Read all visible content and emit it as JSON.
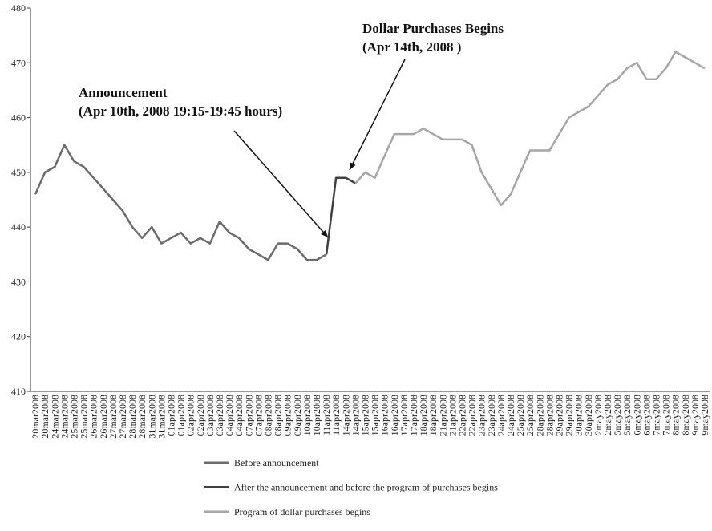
{
  "chart_data": {
    "type": "line",
    "categories": [
      "20mar2008",
      "20mar2008",
      "24mar2008",
      "24mar2008",
      "25mar2008",
      "25mar2008",
      "26mar2008",
      "26mar2008",
      "27mar2008",
      "27mar2008",
      "28mar2008",
      "28mar2008",
      "31mar2008",
      "31mar2008",
      "01apr2008",
      "01apr2008",
      "02apr2008",
      "02apr2008",
      "03apr2008",
      "03apr2008",
      "04apr2008",
      "04apr2008",
      "07apr2008",
      "07apr2008",
      "08apr2008",
      "08apr2008",
      "09apr2008",
      "09apr2008",
      "10apr2008",
      "10apr2008",
      "11apr2008",
      "11apr2008",
      "14apr2008",
      "14apr2008",
      "15apr2008",
      "15apr2008",
      "16apr2008",
      "16apr2008",
      "17apr2008",
      "17apr2008",
      "18apr2008",
      "18apr2008",
      "21apr2008",
      "21apr2008",
      "22apr2008",
      "22apr2008",
      "23apr2008",
      "23apr2008",
      "24apr2008",
      "24apr2008",
      "25apr2008",
      "25apr2008",
      "28apr2008",
      "28apr2008",
      "29apr2008",
      "29apr2008",
      "30apr2008",
      "30apr2008",
      "2may2008",
      "2may2008",
      "5may2008",
      "5may2008",
      "6may2008",
      "6may2008",
      "7may2008",
      "7may2008",
      "8may2008",
      "8may2008",
      "9may2008",
      "9may2008"
    ],
    "series": [
      {
        "name": "Before announcement",
        "color": "#6b6b6b",
        "values": [
          446,
          450,
          451,
          455,
          452,
          451,
          449,
          447,
          445,
          443,
          440,
          438,
          440,
          437,
          438,
          439,
          437,
          438,
          437,
          441,
          439,
          438,
          436,
          435,
          434,
          437,
          437,
          436,
          434,
          434,
          435,
          null,
          null,
          null,
          null,
          null,
          null,
          null,
          null,
          null,
          null,
          null,
          null,
          null,
          null,
          null,
          null,
          null,
          null,
          null,
          null,
          null,
          null,
          null,
          null,
          null,
          null,
          null,
          null,
          null,
          null,
          null,
          null,
          null,
          null,
          null,
          null,
          null,
          null,
          null
        ]
      },
      {
        "name": "After the announcement and before the program of purchases begins",
        "color": "#404040",
        "values": [
          null,
          null,
          null,
          null,
          null,
          null,
          null,
          null,
          null,
          null,
          null,
          null,
          null,
          null,
          null,
          null,
          null,
          null,
          null,
          null,
          null,
          null,
          null,
          null,
          null,
          null,
          null,
          null,
          null,
          null,
          435,
          449,
          449,
          448,
          null,
          null,
          null,
          null,
          null,
          null,
          null,
          null,
          null,
          null,
          null,
          null,
          null,
          null,
          null,
          null,
          null,
          null,
          null,
          null,
          null,
          null,
          null,
          null,
          null,
          null,
          null,
          null,
          null,
          null,
          null,
          null,
          null,
          null,
          null,
          null
        ]
      },
      {
        "name": "Program of dollar purchases begins",
        "color": "#a6a6a6",
        "values": [
          null,
          null,
          null,
          null,
          null,
          null,
          null,
          null,
          null,
          null,
          null,
          null,
          null,
          null,
          null,
          null,
          null,
          null,
          null,
          null,
          null,
          null,
          null,
          null,
          null,
          null,
          null,
          null,
          null,
          null,
          null,
          null,
          null,
          448,
          450,
          449,
          453,
          457,
          457,
          457,
          458,
          457,
          456,
          456,
          456,
          455,
          450,
          447,
          444,
          446,
          450,
          454,
          454,
          454,
          457,
          460,
          461,
          462,
          464,
          466,
          467,
          469,
          470,
          467,
          467,
          469,
          472,
          471,
          470,
          469
        ]
      }
    ],
    "ylim": [
      410,
      480
    ],
    "yticks": [
      410,
      420,
      430,
      440,
      450,
      460,
      470,
      480
    ],
    "annotations": [
      {
        "text": "Announcement",
        "subtext": "(Apr 10th, 2008 19:15-19:45 hours)"
      },
      {
        "text": "Dollar Purchases Begins",
        "subtext": "(Apr 14th, 2008 )"
      }
    ]
  }
}
